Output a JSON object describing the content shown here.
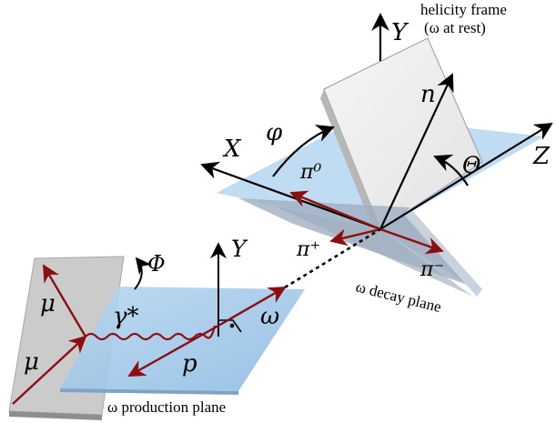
{
  "frame": {
    "title_line1": "helicity frame",
    "title_line2": "(ω  at rest)"
  },
  "axes": {
    "x": "X",
    "y_frame": "Y",
    "z": "Z",
    "n": "n",
    "theta": "Θ",
    "phi": "φ",
    "y_production": "Y"
  },
  "decay": {
    "pi0": "π⁰",
    "pi_plus": "π⁺",
    "pi_minus": "π⁻",
    "plane_label": "ω decay plane"
  },
  "production": {
    "mu_upper": "μ",
    "mu_lower": "μ",
    "photon": "γ*",
    "Phi": "Φ",
    "omega": "ω",
    "proton": "p",
    "plane_label": "ω  production plane"
  },
  "colors": {
    "arrow_red": "#8b0f12",
    "blue_plane": "#a9cdea",
    "grey_plane": "#cfcfcf",
    "white_plane": "#efefef"
  }
}
